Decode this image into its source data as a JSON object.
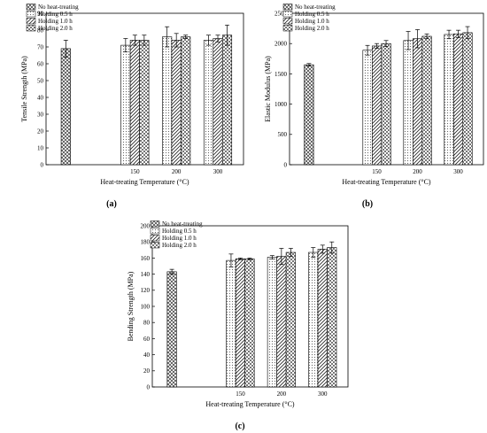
{
  "chart_data": [
    {
      "type": "bar",
      "panel_label": "(a)",
      "categories": [
        "",
        "150",
        "200",
        "300"
      ],
      "xlabel": "Heat-treating Temperature (°C)",
      "ylabel": "Tensile Strength (MPa)",
      "ylim": [
        0,
        90
      ],
      "yticks": [
        "0",
        "10",
        "20",
        "30",
        "40",
        "50",
        "60",
        "70",
        "80",
        "90"
      ],
      "legend_position": "top-left",
      "series": [
        {
          "name": "No heat-treating",
          "values": [
            69,
            null,
            null,
            null
          ],
          "errors": [
            5,
            null,
            null,
            null
          ],
          "pattern": "cross"
        },
        {
          "name": "Holding 0.5 h",
          "values": [
            null,
            71,
            76,
            74
          ],
          "errors": [
            null,
            4,
            6,
            3
          ],
          "pattern": "dots"
        },
        {
          "name": "Holding 1.0 h",
          "values": [
            null,
            74,
            74,
            75
          ],
          "errors": [
            null,
            3,
            4,
            2
          ],
          "pattern": "diag"
        },
        {
          "name": "Holding 2.0 h",
          "values": [
            null,
            74,
            76,
            77
          ],
          "errors": [
            null,
            3,
            1,
            6
          ],
          "pattern": "checker"
        }
      ]
    },
    {
      "type": "bar",
      "panel_label": "(b)",
      "categories": [
        "",
        "150",
        "200",
        "300"
      ],
      "xlabel": "Heat-treating Temperature (°C)",
      "ylabel": "Elastic Modulus (MPa)",
      "ylim": [
        0,
        2500
      ],
      "yticks": [
        "0",
        "500",
        "1000",
        "1500",
        "2000",
        "2500"
      ],
      "legend_position": "top-left",
      "series": [
        {
          "name": "No heat-treating",
          "values": [
            1650,
            null,
            null,
            null
          ],
          "errors": [
            20,
            null,
            null,
            null
          ],
          "pattern": "cross"
        },
        {
          "name": "Holding 0.5 h",
          "values": [
            null,
            1890,
            2050,
            2150
          ],
          "errors": [
            null,
            80,
            150,
            70
          ],
          "pattern": "dots"
        },
        {
          "name": "Holding 1.0 h",
          "values": [
            null,
            1960,
            2080,
            2160
          ],
          "errors": [
            null,
            40,
            150,
            60
          ],
          "pattern": "diag"
        },
        {
          "name": "Holding 2.0 h",
          "values": [
            null,
            2000,
            2120,
            2180
          ],
          "errors": [
            null,
            50,
            40,
            100
          ],
          "pattern": "checker"
        }
      ]
    },
    {
      "type": "bar",
      "panel_label": "(c)",
      "categories": [
        "",
        "150",
        "200",
        "300"
      ],
      "xlabel": "Heat-treating Temperature (°C)",
      "ylabel": "Bending Strength (MPa)",
      "ylim": [
        0,
        200
      ],
      "yticks": [
        "0",
        "20",
        "40",
        "60",
        "80",
        "100",
        "120",
        "140",
        "160",
        "180",
        "200"
      ],
      "legend_position": "top-left",
      "series": [
        {
          "name": "No heat-treating",
          "values": [
            143,
            null,
            null,
            null
          ],
          "errors": [
            3,
            null,
            null,
            null
          ],
          "pattern": "cross"
        },
        {
          "name": "Holding 0.5 h",
          "values": [
            null,
            157,
            161,
            167
          ],
          "errors": [
            null,
            8,
            2,
            6
          ],
          "pattern": "dots"
        },
        {
          "name": "Holding 1.0 h",
          "values": [
            null,
            159,
            162,
            171
          ],
          "errors": [
            null,
            1,
            10,
            5
          ],
          "pattern": "diag"
        },
        {
          "name": "Holding 2.0 h",
          "values": [
            null,
            159,
            167,
            173
          ],
          "errors": [
            null,
            1,
            5,
            7
          ],
          "pattern": "checker"
        }
      ]
    }
  ]
}
